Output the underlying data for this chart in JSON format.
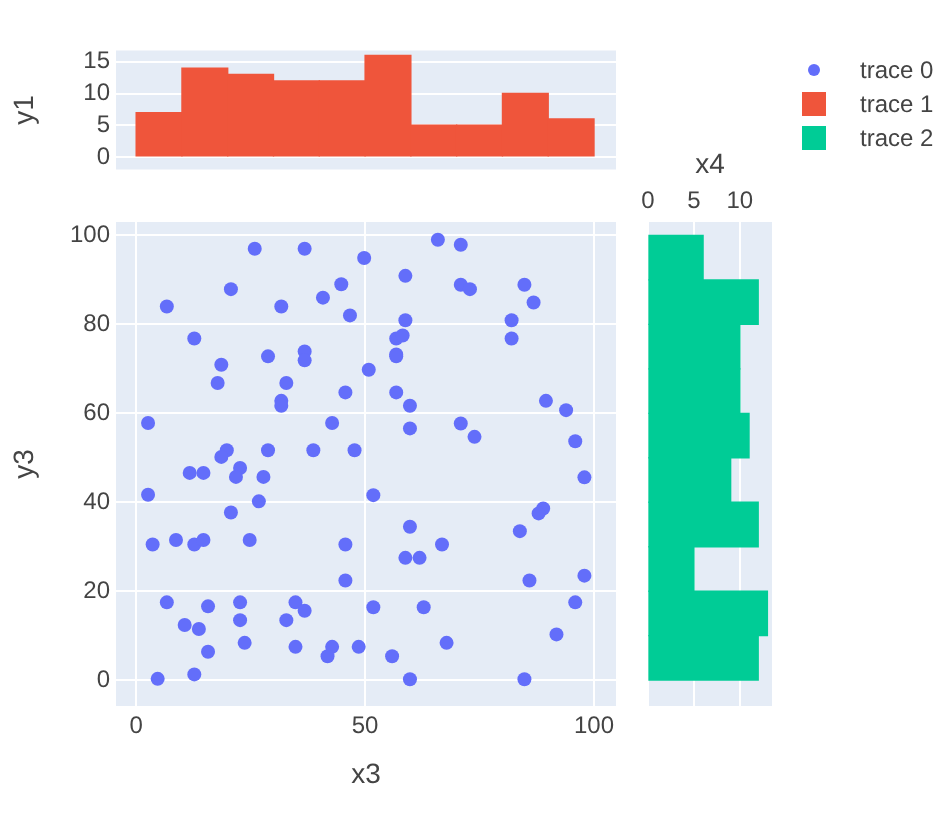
{
  "chart_data": [
    {
      "type": "histogram",
      "ylabel": "y1",
      "bins": [
        0,
        10,
        20,
        30,
        40,
        50,
        60,
        70,
        80,
        90,
        100
      ],
      "series": [
        {
          "name": "trace 1",
          "color": "#ef553b",
          "values": [
            7,
            14,
            13,
            12,
            12,
            16,
            5,
            5,
            10,
            6
          ]
        }
      ],
      "xlim": [
        -4.4,
        104.8
      ],
      "ylim": [
        -2,
        16.8
      ],
      "yticks": [
        0,
        5,
        10,
        15
      ],
      "tick_labels": "y",
      "grid": "y",
      "legend": "right"
    },
    {
      "type": "scatter",
      "xlabel": "x3",
      "ylabel": "y3",
      "xlim": [
        -4.4,
        104.8
      ],
      "ylim": [
        -5.8,
        103
      ],
      "xticks": [
        0,
        50,
        100
      ],
      "yticks": [
        0,
        20,
        40,
        60,
        80,
        100
      ],
      "grid": true,
      "marker": "circle",
      "legend": "right",
      "x": [
        25.9,
        36.8,
        20.7,
        6.7,
        31.7,
        40.8,
        44.8,
        46.7,
        12.7,
        18.6,
        17.8,
        28.8,
        36.8,
        36.8,
        32.8,
        31.7,
        31.7,
        45.7,
        2.6,
        42.8,
        19.8,
        28.8,
        38.7,
        47.7,
        18.6,
        22.7,
        11.7,
        14.7,
        21.8,
        27.8,
        2.6,
        20.7,
        26.8,
        3.6,
        8.7,
        12.7,
        14.7,
        24.8,
        45.7,
        45.7,
        6.7,
        15.7,
        22.7,
        34.8,
        36.8,
        10.6,
        13.7,
        22.7,
        32.8,
        23.7,
        15.7,
        34.8,
        42.8,
        41.8,
        48.6,
        4.7,
        12.7,
        65.9,
        70.9,
        49.8,
        58.8,
        70.9,
        72.9,
        84.8,
        86.8,
        58.8,
        82,
        56.8,
        82,
        56.8,
        50.8,
        56.8,
        59.8,
        59.8,
        70.9,
        73.9,
        89.5,
        93.9,
        95.9,
        97.9,
        51.8,
        59.8,
        88.9,
        87.9,
        83.8,
        58.8,
        61.9,
        66.8,
        85.9,
        97.9,
        51.8,
        62.8,
        95.9,
        91.8,
        55.9,
        67.8,
        59.8,
        84.8,
        56.8,
        58.2
      ],
      "series": [
        {
          "name": "trace 0",
          "color": "#636efa",
          "values": [
            97,
            97,
            87.9,
            84,
            84,
            86,
            89,
            82,
            76.8,
            70.9,
            66.8,
            72.8,
            73.9,
            71.9,
            66.8,
            62.8,
            61.7,
            64.7,
            57.8,
            57.8,
            51.7,
            51.7,
            51.7,
            51.7,
            50.2,
            47.7,
            46.6,
            46.6,
            45.7,
            45.7,
            41.7,
            37.7,
            40.2,
            30.5,
            31.5,
            30.5,
            31.5,
            31.5,
            30.5,
            22.4,
            17.5,
            16.6,
            17.5,
            17.5,
            15.6,
            12.4,
            11.5,
            13.5,
            13.5,
            8.4,
            6.4,
            7.5,
            7.5,
            5.4,
            7.5,
            0.3,
            1.3,
            99,
            97.9,
            94.9,
            90.9,
            88.9,
            87.9,
            88.9,
            84.9,
            80.9,
            80.9,
            76.8,
            76.8,
            72.8,
            69.8,
            64.7,
            61.7,
            56.6,
            57.7,
            54.7,
            62.8,
            60.7,
            53.7,
            45.6,
            41.6,
            34.5,
            38.6,
            37.5,
            33.5,
            27.5,
            27.5,
            30.5,
            22.4,
            23.5,
            16.4,
            16.4,
            17.5,
            10.3,
            5.4,
            8.4,
            0.2,
            0.2,
            73.2,
            77.5
          ]
        }
      ]
    },
    {
      "type": "histogram",
      "orientation": "horizontal",
      "xlabel": "x4",
      "bins": [
        0,
        10,
        20,
        30,
        40,
        50,
        60,
        70,
        80,
        90,
        100
      ],
      "series": [
        {
          "name": "trace 2",
          "color": "#00cc96",
          "values": [
            12,
            13,
            5,
            12,
            9,
            11,
            10,
            10,
            12,
            6
          ]
        }
      ],
      "xlim": [
        0,
        13.5
      ],
      "xticks": [
        0,
        5,
        10
      ],
      "ylim": [
        -5.8,
        103
      ],
      "tick_labels": "x",
      "grid": "x",
      "legend": "right"
    }
  ]
}
